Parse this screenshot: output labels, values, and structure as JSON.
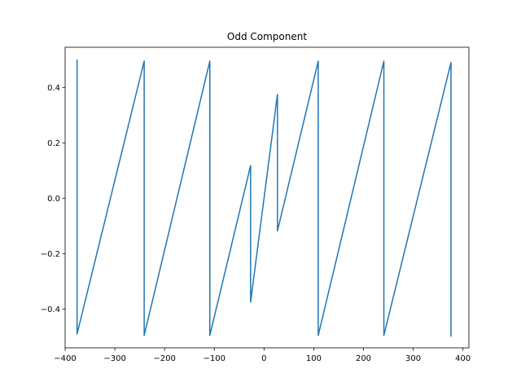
{
  "chart_data": {
    "type": "line",
    "title": "Odd Component",
    "xlabel": "",
    "ylabel": "",
    "xlim": [
      -400,
      412
    ],
    "ylim": [
      -0.54,
      0.545
    ],
    "grid": false,
    "xticks": [
      -400,
      -300,
      -200,
      -100,
      0,
      100,
      200,
      300,
      400
    ],
    "xtick_labels": [
      "−400",
      "−300",
      "−200",
      "−100",
      "0",
      "100",
      "200",
      "300",
      "400"
    ],
    "yticks": [
      -0.4,
      -0.2,
      0.0,
      0.2,
      0.4
    ],
    "ytick_labels": [
      "−0.4",
      "−0.2",
      "0.0",
      "0.2",
      "0.4"
    ],
    "series": [
      {
        "color": "#1f77b4",
        "x": [
          -376,
          -376,
          -241,
          -241,
          -109,
          -109,
          -27,
          -27,
          27,
          27,
          109,
          109,
          241,
          241,
          376,
          376
        ],
        "y": [
          0.5,
          -0.49,
          0.495,
          -0.495,
          0.495,
          -0.495,
          0.118,
          -0.375,
          0.375,
          -0.118,
          0.495,
          -0.495,
          0.495,
          -0.495,
          0.49,
          -0.5
        ]
      }
    ]
  }
}
